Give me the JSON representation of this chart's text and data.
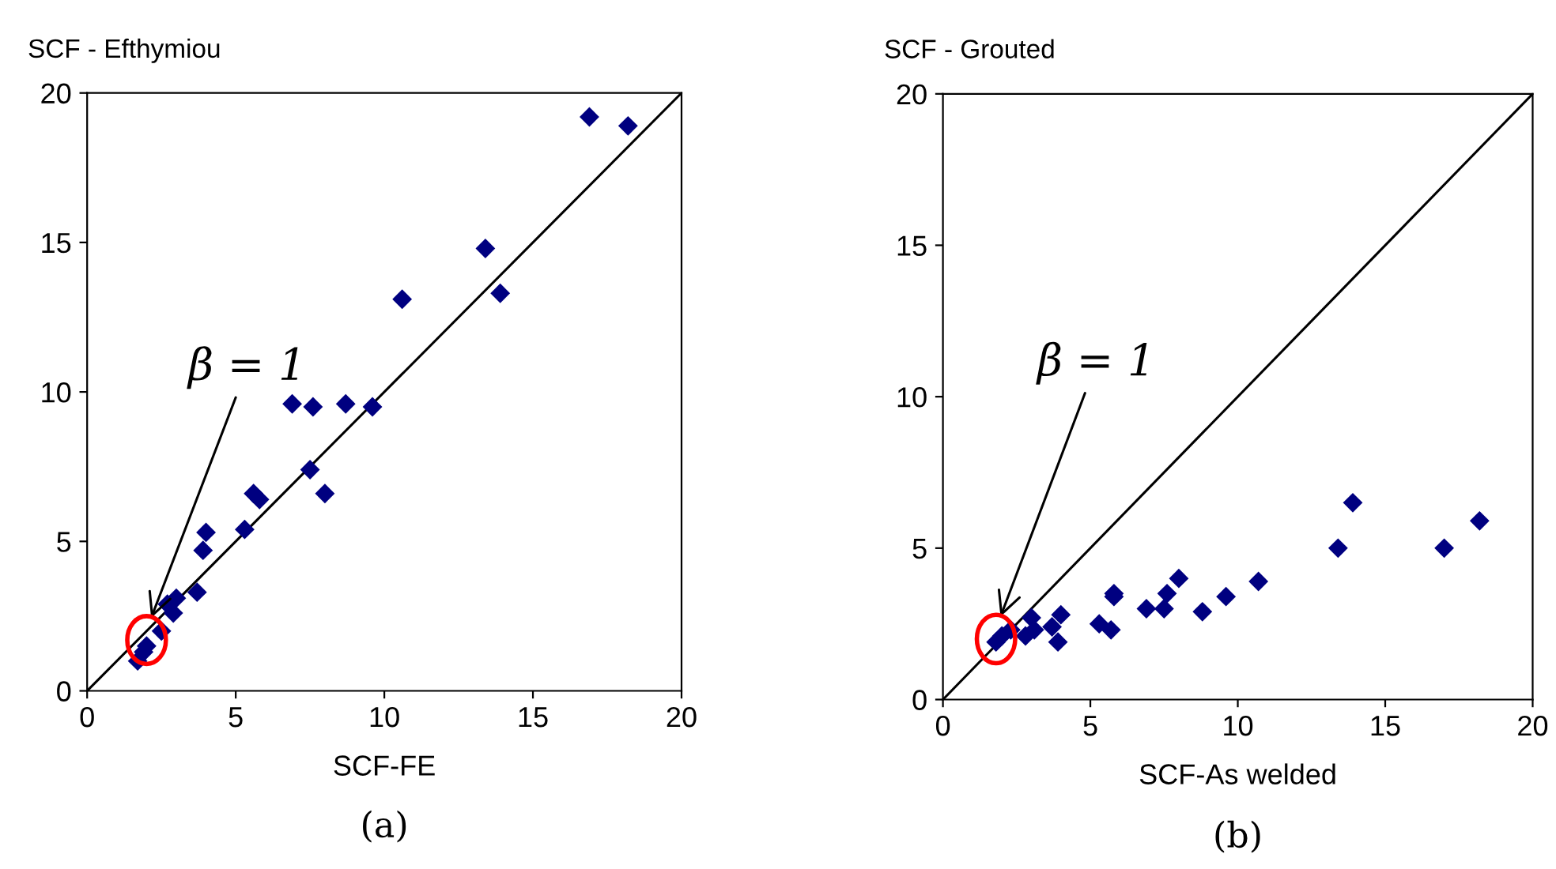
{
  "chart_data": [
    {
      "type": "scatter",
      "ylabel": "SCF - Efthymiou",
      "xlabel": "SCF-FE",
      "grid": false,
      "xlim": [
        0,
        20
      ],
      "ylim": [
        0,
        20
      ],
      "xticks": [
        0,
        5,
        10,
        15,
        20
      ],
      "yticks": [
        0,
        5,
        10,
        15,
        20
      ],
      "annotations": [
        {
          "text": "β = 1",
          "x": 2.1,
          "y": 2.3
        },
        "(a)"
      ],
      "series": [
        {
          "marker": "diamond",
          "color": "#000080",
          "x": [
            16.9,
            18.2,
            13.4,
            13.9,
            10.6,
            6.9,
            7.6,
            8.7,
            9.6,
            7.5,
            8.0,
            5.6,
            5.8,
            5.3,
            4.0,
            3.9,
            3.7,
            3.0,
            2.9,
            2.7,
            2.5,
            2.0,
            1.9,
            1.7
          ],
          "values": [
            19.2,
            18.9,
            14.8,
            13.3,
            13.1,
            9.6,
            9.5,
            9.6,
            9.5,
            7.4,
            6.6,
            6.6,
            6.4,
            5.4,
            5.3,
            4.7,
            3.3,
            3.1,
            2.6,
            2.9,
            2.0,
            1.5,
            1.3,
            1.0
          ]
        },
        {
          "type": "line",
          "color": "#000000",
          "x": [
            0,
            20
          ],
          "values": [
            0,
            20
          ]
        }
      ]
    },
    {
      "type": "scatter",
      "ylabel": "SCF - Grouted",
      "xlabel": "SCF-As welded",
      "grid": false,
      "xlim": [
        0,
        20
      ],
      "ylim": [
        0,
        20
      ],
      "xticks": [
        0,
        5,
        10,
        15,
        20
      ],
      "yticks": [
        0,
        5,
        10,
        15,
        20
      ],
      "annotations": [
        {
          "text": "β = 1",
          "x": 1.9,
          "y": 2.6
        },
        "(b)"
      ],
      "series": [
        {
          "marker": "diamond",
          "color": "#000080",
          "x": [
            13.9,
            18.2,
            13.4,
            17.0,
            10.7,
            9.6,
            8.8,
            8.0,
            7.6,
            7.5,
            6.9,
            5.8,
            5.8,
            5.3,
            5.7,
            4.0,
            3.7,
            3.9,
            3.0,
            3.1,
            2.8,
            2.3,
            2.0,
            1.8
          ],
          "values": [
            6.5,
            5.9,
            5.0,
            5.0,
            3.9,
            3.4,
            2.9,
            4.0,
            3.5,
            3.0,
            3.0,
            3.5,
            3.4,
            2.5,
            2.3,
            2.8,
            2.4,
            1.9,
            2.7,
            2.3,
            2.1,
            2.3,
            2.1,
            1.9
          ]
        },
        {
          "type": "line",
          "color": "#000000",
          "x": [
            0,
            20
          ],
          "values": [
            0,
            20
          ]
        }
      ]
    }
  ]
}
